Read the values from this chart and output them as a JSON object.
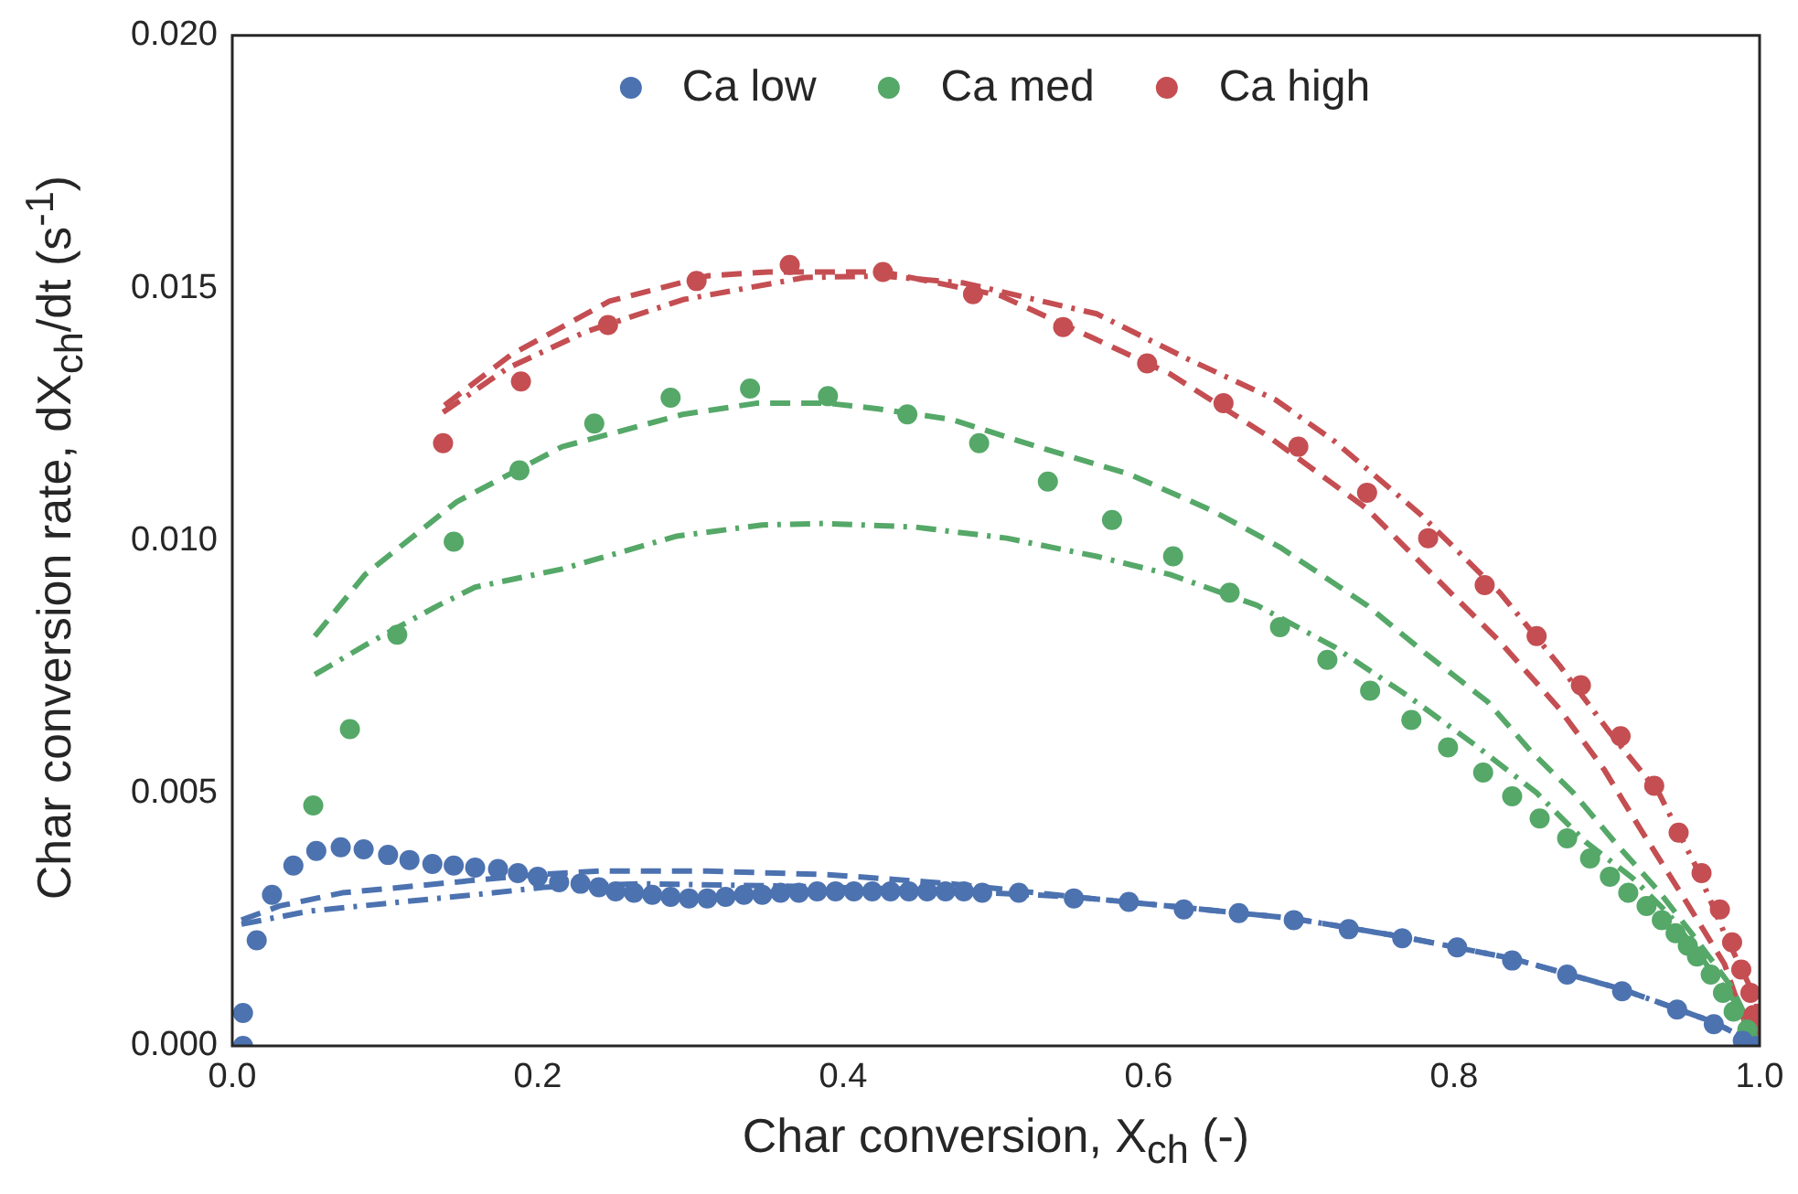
{
  "chart_data": {
    "type": "scatter",
    "xlabel": "Char conversion, X$_{ch}$ (-)",
    "ylabel": "Char conversion rate, dX$_{ch}$/dt (s$^{-1}$)",
    "xlim": [
      0,
      1
    ],
    "xticks": [
      {
        "value": 0,
        "label": "0.0"
      },
      0.2,
      0.4,
      0.6,
      0.8,
      {
        "value": 1,
        "label": "1.0"
      }
    ],
    "ylim": [
      0,
      0.02
    ],
    "yticks": [
      {
        "value": 0,
        "label": "0.000"
      },
      0.005,
      {
        "value": 0.01,
        "label": "0.010"
      },
      0.015,
      {
        "value": 0.02,
        "label": "0.020"
      }
    ],
    "grid": false,
    "legend": "top",
    "series": [
      {
        "name": "Ca low",
        "color": "#4c72b0",
        "marker": "circle",
        "x": [
          0.007,
          0.007,
          0.016,
          0.026,
          0.04,
          0.055,
          0.071,
          0.086,
          0.102,
          0.116,
          0.131,
          0.145,
          0.159,
          0.174,
          0.187,
          0.2,
          0.214,
          0.228,
          0.24,
          0.251,
          0.263,
          0.275,
          0.287,
          0.299,
          0.311,
          0.323,
          0.335,
          0.347,
          0.359,
          0.371,
          0.383,
          0.395,
          0.407,
          0.419,
          0.431,
          0.443,
          0.455,
          0.467,
          0.479,
          0.491,
          0.515,
          0.551,
          0.587,
          0.623,
          0.659,
          0.695,
          0.731,
          0.766,
          0.802,
          0.838,
          0.874,
          0.91,
          0.946,
          0.97,
          0.989,
          0.998
        ],
        "values": [
          0.0,
          0.00065,
          0.00209,
          0.00299,
          0.00357,
          0.00386,
          0.00393,
          0.00389,
          0.00378,
          0.00368,
          0.0036,
          0.00357,
          0.00353,
          0.0035,
          0.00342,
          0.00335,
          0.00324,
          0.00321,
          0.00314,
          0.00306,
          0.00303,
          0.00299,
          0.00295,
          0.00292,
          0.00292,
          0.00295,
          0.00299,
          0.00299,
          0.00303,
          0.00303,
          0.00306,
          0.00306,
          0.00306,
          0.00306,
          0.00306,
          0.00306,
          0.00306,
          0.00306,
          0.00306,
          0.00303,
          0.00303,
          0.00292,
          0.00285,
          0.0027,
          0.00263,
          0.00249,
          0.00231,
          0.00213,
          0.00195,
          0.00169,
          0.00141,
          0.00108,
          0.00072,
          0.00043,
          0.0001,
          0.0
        ]
      },
      {
        "name": "Ca med",
        "color": "#55a868",
        "marker": "circle",
        "x": [
          0.053,
          0.077,
          0.108,
          0.145,
          0.188,
          0.237,
          0.287,
          0.339,
          0.39,
          0.442,
          0.489,
          0.534,
          0.576,
          0.616,
          0.653,
          0.686,
          0.717,
          0.745,
          0.772,
          0.796,
          0.819,
          0.838,
          0.856,
          0.874,
          0.889,
          0.902,
          0.914,
          0.926,
          0.936,
          0.945,
          0.953,
          0.959,
          0.968,
          0.976,
          0.983,
          0.992
        ],
        "values": [
          0.00476,
          0.00627,
          0.00814,
          0.00998,
          0.01139,
          0.01232,
          0.01283,
          0.01301,
          0.01286,
          0.0125,
          0.01193,
          0.01117,
          0.01041,
          0.00969,
          0.00897,
          0.00829,
          0.00764,
          0.00703,
          0.00645,
          0.00591,
          0.00541,
          0.00494,
          0.0045,
          0.00411,
          0.00371,
          0.00335,
          0.00303,
          0.00277,
          0.00249,
          0.00223,
          0.00198,
          0.00177,
          0.00141,
          0.00105,
          0.00068,
          0.00032
        ]
      },
      {
        "name": "Ca high",
        "color": "#c44e52",
        "marker": "circle",
        "x": [
          0.138,
          0.189,
          0.246,
          0.304,
          0.365,
          0.426,
          0.485,
          0.544,
          0.599,
          0.649,
          0.698,
          0.743,
          0.783,
          0.82,
          0.854,
          0.883,
          0.909,
          0.931,
          0.947,
          0.962,
          0.974,
          0.982,
          0.988,
          0.994,
          0.996
        ],
        "values": [
          0.01193,
          0.01315,
          0.01427,
          0.01514,
          0.01546,
          0.01532,
          0.01488,
          0.01423,
          0.01351,
          0.01272,
          0.01186,
          0.01095,
          0.01005,
          0.00912,
          0.00811,
          0.00714,
          0.00613,
          0.00515,
          0.00422,
          0.00342,
          0.0027,
          0.00205,
          0.00151,
          0.00105,
          0.00061
        ]
      },
      {
        "color": "#4c72b0",
        "type": "line",
        "line_style": "dashed",
        "x": [
          0.006,
          0.031,
          0.072,
          0.111,
          0.159,
          0.199,
          0.24,
          0.311,
          0.39,
          0.471,
          0.551,
          0.623,
          0.695,
          0.766,
          0.838,
          0.91,
          0.97,
          1.0
        ],
        "values": [
          0.00249,
          0.00277,
          0.00303,
          0.00314,
          0.00328,
          0.00339,
          0.00346,
          0.00346,
          0.00339,
          0.00321,
          0.00295,
          0.00274,
          0.00252,
          0.00216,
          0.00173,
          0.00112,
          0.00047,
          0.0
        ]
      },
      {
        "color": "#4c72b0",
        "type": "line",
        "line_style": "dashdot",
        "x": [
          0.006,
          0.051,
          0.111,
          0.171,
          0.204,
          0.267,
          0.351,
          0.447,
          0.551,
          0.623,
          0.695,
          0.766,
          0.838,
          0.91,
          0.97,
          1.0
        ],
        "values": [
          0.00241,
          0.00267,
          0.00285,
          0.00303,
          0.00314,
          0.00321,
          0.00317,
          0.0031,
          0.00295,
          0.00274,
          0.00252,
          0.00216,
          0.00173,
          0.00112,
          0.00047,
          0.0
        ]
      },
      {
        "color": "#55a868",
        "type": "line",
        "line_style": "dashed",
        "x": [
          0.054,
          0.087,
          0.147,
          0.216,
          0.295,
          0.343,
          0.39,
          0.423,
          0.471,
          0.527,
          0.587,
          0.642,
          0.686,
          0.743,
          0.782,
          0.822,
          0.85,
          0.878,
          0.905,
          0.934,
          0.958,
          0.982,
          1.0
        ],
        "values": [
          0.00811,
          0.00933,
          0.01077,
          0.01186,
          0.0125,
          0.01272,
          0.01272,
          0.01261,
          0.0124,
          0.01186,
          0.01132,
          0.01059,
          0.00987,
          0.00872,
          0.00775,
          0.00681,
          0.00584,
          0.00501,
          0.00404,
          0.00306,
          0.00213,
          0.00115,
          0.0
        ]
      },
      {
        "color": "#55a868",
        "type": "line",
        "line_style": "dashdot",
        "x": [
          0.054,
          0.091,
          0.135,
          0.159,
          0.216,
          0.291,
          0.347,
          0.387,
          0.447,
          0.507,
          0.566,
          0.614,
          0.671,
          0.722,
          0.77,
          0.814,
          0.854,
          0.886,
          0.917,
          0.941,
          0.965,
          0.986,
          1.0
        ],
        "values": [
          0.00735,
          0.008,
          0.00872,
          0.00908,
          0.00944,
          0.01009,
          0.01031,
          0.01034,
          0.01027,
          0.01005,
          0.00969,
          0.00933,
          0.00872,
          0.00789,
          0.00692,
          0.00595,
          0.00501,
          0.00404,
          0.00332,
          0.00259,
          0.00162,
          0.00079,
          0.0
        ]
      },
      {
        "color": "#c44e52",
        "type": "line",
        "line_style": "dashed",
        "x": [
          0.139,
          0.183,
          0.247,
          0.311,
          0.351,
          0.426,
          0.503,
          0.563,
          0.614,
          0.678,
          0.743,
          0.794,
          0.83,
          0.869,
          0.898,
          0.922,
          0.95,
          0.977,
          0.992,
          1.0
        ],
        "values": [
          0.01268,
          0.01369,
          0.01474,
          0.01524,
          0.01532,
          0.01532,
          0.01485,
          0.01402,
          0.0133,
          0.01207,
          0.01063,
          0.00908,
          0.008,
          0.00667,
          0.00548,
          0.00429,
          0.00295,
          0.00162,
          0.00032,
          0.0
        ]
      },
      {
        "color": "#c44e52",
        "type": "line",
        "line_style": "dashdot",
        "x": [
          0.138,
          0.18,
          0.231,
          0.295,
          0.375,
          0.426,
          0.479,
          0.566,
          0.626,
          0.683,
          0.722,
          0.778,
          0.83,
          0.869,
          0.902,
          0.934,
          0.958,
          0.977,
          0.998,
          1.0
        ],
        "values": [
          0.01254,
          0.01341,
          0.01413,
          0.01477,
          0.01521,
          0.01524,
          0.0151,
          0.01449,
          0.01359,
          0.01279,
          0.01196,
          0.01052,
          0.00897,
          0.00753,
          0.0062,
          0.00501,
          0.00357,
          0.00223,
          0.0009,
          0.0
        ]
      }
    ]
  }
}
